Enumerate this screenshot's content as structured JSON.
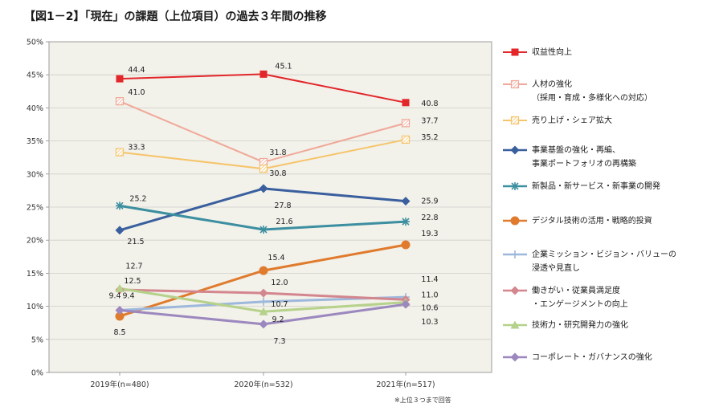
{
  "title": "【図1－2】「現在」の課題（上位項目）の過去３年間の推移",
  "footnote": "※上位３つまで回答",
  "colors": {
    "plot_bg": "#f2f1ea",
    "grid": "#cfcfc8",
    "axis": "#888888"
  },
  "chart_data": {
    "type": "line",
    "categories": [
      "2019年(n=480)",
      "2020年(n=532)",
      "2021年(n=517)"
    ],
    "ylim": [
      0,
      50
    ],
    "ytick_labels": [
      "0%",
      "5%",
      "10%",
      "15%",
      "20%",
      "25%",
      "30%",
      "35%",
      "40%",
      "45%",
      "50%"
    ],
    "grid": true,
    "legend_position": "right",
    "xlabel": "",
    "ylabel": "",
    "series": [
      {
        "name": "収益性向上",
        "values": [
          44.4,
          45.1,
          40.8
        ],
        "color": "#e3262a",
        "marker": "square",
        "width": 2,
        "labels": [
          "44.4",
          "45.1",
          "40.8"
        ]
      },
      {
        "name": "人材の強化\n（採用・育成・多様化への対応）",
        "values": [
          41.0,
          31.8,
          37.7
        ],
        "color": "#f0a898",
        "marker": "square-hatched",
        "width": 2,
        "labels": [
          "41.0",
          "31.8",
          "37.7"
        ]
      },
      {
        "name": "売り上げ・シェア拡大",
        "values": [
          33.3,
          30.8,
          35.2
        ],
        "color": "#f6c46a",
        "marker": "square-hatched",
        "width": 2,
        "labels": [
          "33.3",
          "30.8",
          "35.2"
        ]
      },
      {
        "name": "事業基盤の強化・再編、\n事業ポートフォリオの再構築",
        "values": [
          21.5,
          27.8,
          25.9
        ],
        "color": "#3a5f9e",
        "marker": "diamond",
        "width": 3,
        "labels": [
          "21.5",
          "27.8",
          "25.9"
        ]
      },
      {
        "name": "新製品・新サービス・新事業の開発",
        "values": [
          25.2,
          21.6,
          22.8
        ],
        "color": "#3c8fa0",
        "marker": "star",
        "width": 3,
        "labels": [
          "25.2",
          "21.6",
          "22.8"
        ]
      },
      {
        "name": "デジタル技術の活用・戦略的投資",
        "values": [
          8.5,
          15.4,
          19.3
        ],
        "color": "#e07b2e",
        "marker": "circle",
        "width": 3,
        "labels": [
          "8.5",
          "15.4",
          "19.3"
        ]
      },
      {
        "name": "企業ミッション・ビジョン・バリューの\n浸透や見直し",
        "values": [
          9.4,
          10.7,
          11.4
        ],
        "color": "#9db8dc",
        "marker": "cross",
        "width": 3,
        "labels": [
          "9.4",
          "10.7",
          "11.4"
        ]
      },
      {
        "name": "働きがい・従業員満足度\n・エンゲージメントの向上",
        "values": [
          12.5,
          12.0,
          11.0
        ],
        "color": "#d4868e",
        "marker": "diamond",
        "width": 3,
        "labels": [
          "12.5",
          "12.0",
          "11.0"
        ]
      },
      {
        "name": "技術力・研究開発力の強化",
        "values": [
          12.7,
          9.2,
          10.6
        ],
        "color": "#b5d18a",
        "marker": "triangle",
        "width": 3,
        "labels": [
          "12.7",
          "9.2",
          "10.6"
        ]
      },
      {
        "name": "コーポレート・ガバナンスの強化",
        "values": [
          9.4,
          7.3,
          10.3
        ],
        "color": "#9c88bf",
        "marker": "diamond",
        "width": 3,
        "labels": [
          "9.4",
          "7.3",
          "10.3"
        ]
      }
    ]
  }
}
